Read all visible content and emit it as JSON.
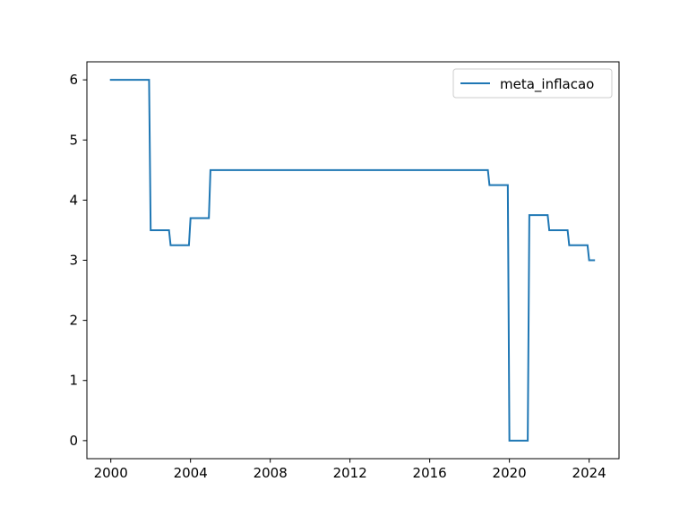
{
  "chart_data": {
    "type": "line",
    "title": "",
    "xlabel": "",
    "ylabel": "",
    "xlim": [
      1998.8,
      2025.5
    ],
    "ylim": [
      -0.3,
      6.3
    ],
    "xticks": [
      2000,
      2004,
      2008,
      2012,
      2016,
      2020,
      2024
    ],
    "yticks": [
      0,
      1,
      2,
      3,
      4,
      5,
      6
    ],
    "grid": false,
    "legend_position": "top-right",
    "series": [
      {
        "name": "meta_inflacao",
        "color": "#1f77b4",
        "x": [
          2000.0,
          2001.92,
          2002.0,
          2002.92,
          2003.0,
          2003.92,
          2004.0,
          2004.92,
          2005.0,
          2018.92,
          2019.0,
          2019.92,
          2020.0,
          2020.92,
          2021.0,
          2021.92,
          2022.0,
          2022.92,
          2023.0,
          2023.92,
          2024.0,
          2024.25
        ],
        "y": [
          6.0,
          6.0,
          3.5,
          3.5,
          3.25,
          3.25,
          3.7,
          3.7,
          4.5,
          4.5,
          4.25,
          4.25,
          0.0,
          0.0,
          3.75,
          3.75,
          3.5,
          3.5,
          3.25,
          3.25,
          3.0,
          3.0
        ]
      }
    ]
  }
}
